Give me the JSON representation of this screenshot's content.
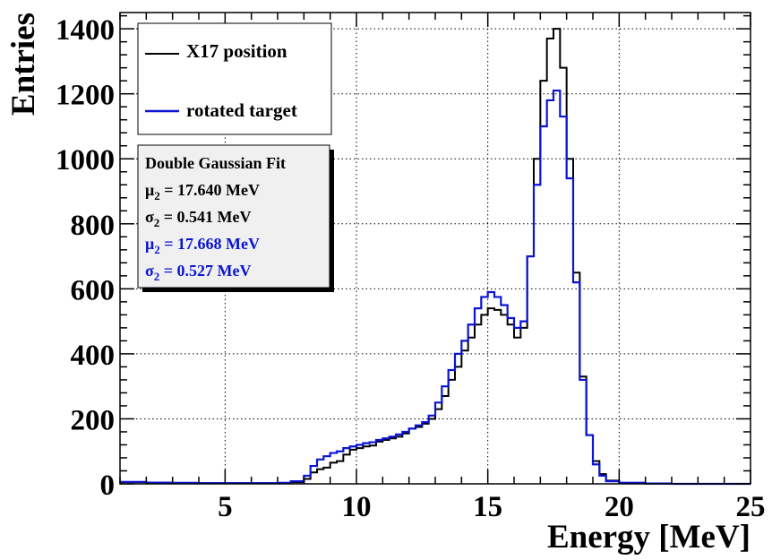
{
  "chart_data": {
    "type": "line",
    "xlabel": "Energy [MeV]",
    "ylabel": "Entries",
    "xlim": [
      1,
      25
    ],
    "ylim": [
      0,
      1450
    ],
    "x_ticks": [
      5,
      10,
      15,
      20,
      25
    ],
    "y_ticks": [
      0,
      200,
      400,
      600,
      800,
      1000,
      1200,
      1400
    ],
    "grid": true,
    "legend": {
      "placement": "top-left",
      "entries": [
        {
          "label": "X17 position",
          "color": "#000000"
        },
        {
          "label": "rotated target",
          "color": "#0a14d2"
        }
      ]
    },
    "fit_box": {
      "title": "Double Gaussian Fit",
      "lines": [
        {
          "symbol": "μ",
          "sub": "2",
          "text": " = 17.640 MeV",
          "color": "#000000"
        },
        {
          "symbol": "σ",
          "sub": "2",
          "text": " = 0.541 MeV",
          "color": "#000000"
        },
        {
          "symbol": "μ",
          "sub": "2",
          "text": " = 17.668 MeV",
          "color": "#0a14d2"
        },
        {
          "symbol": "σ",
          "sub": "2",
          "text": " = 0.527 MeV",
          "color": "#0a14d2"
        }
      ]
    },
    "series": [
      {
        "name": "X17 position",
        "color": "#000000",
        "x": [
          1,
          2,
          3,
          4,
          5,
          6,
          7,
          7.5,
          8,
          8.25,
          8.5,
          8.75,
          9,
          9.25,
          9.5,
          9.75,
          10,
          10.25,
          10.5,
          10.75,
          11,
          11.25,
          11.5,
          11.75,
          12,
          12.25,
          12.5,
          12.75,
          13,
          13.25,
          13.5,
          13.75,
          14,
          14.25,
          14.5,
          14.75,
          15,
          15.25,
          15.5,
          15.75,
          16,
          16.25,
          16.5,
          16.75,
          17,
          17.25,
          17.5,
          17.75,
          18,
          18.25,
          18.5,
          18.75,
          19,
          19.25,
          19.5,
          20,
          21,
          22,
          23,
          24,
          25
        ],
        "y": [
          5,
          3,
          2,
          2,
          2,
          2,
          2,
          5,
          15,
          35,
          45,
          50,
          65,
          70,
          90,
          105,
          110,
          115,
          118,
          130,
          135,
          140,
          145,
          155,
          170,
          175,
          185,
          200,
          230,
          270,
          320,
          360,
          410,
          450,
          490,
          520,
          540,
          535,
          520,
          490,
          450,
          480,
          700,
          1000,
          1240,
          1370,
          1400,
          1280,
          1000,
          650,
          330,
          150,
          70,
          30,
          10,
          3,
          1,
          0,
          0,
          0,
          0
        ]
      },
      {
        "name": "rotated target",
        "color": "#0a14d2",
        "x": [
          1,
          2,
          3,
          4,
          5,
          6,
          7,
          7.5,
          8,
          8.25,
          8.5,
          8.75,
          9,
          9.25,
          9.5,
          9.75,
          10,
          10.25,
          10.5,
          10.75,
          11,
          11.25,
          11.5,
          11.75,
          12,
          12.25,
          12.5,
          12.75,
          13,
          13.25,
          13.5,
          13.75,
          14,
          14.25,
          14.5,
          14.75,
          15,
          15.25,
          15.5,
          15.75,
          16,
          16.25,
          16.5,
          16.75,
          17,
          17.25,
          17.5,
          17.75,
          18,
          18.25,
          18.5,
          18.75,
          19,
          19.25,
          19.5,
          20,
          21,
          22,
          23,
          24,
          25
        ],
        "y": [
          6,
          4,
          3,
          2,
          2,
          2,
          3,
          8,
          25,
          55,
          75,
          85,
          95,
          100,
          110,
          115,
          120,
          125,
          128,
          135,
          140,
          145,
          152,
          160,
          170,
          180,
          190,
          210,
          250,
          300,
          350,
          400,
          440,
          490,
          540,
          575,
          590,
          575,
          550,
          510,
          480,
          500,
          700,
          920,
          1100,
          1180,
          1210,
          1130,
          940,
          620,
          320,
          150,
          60,
          25,
          8,
          3,
          1,
          0,
          0,
          0,
          0
        ]
      }
    ]
  }
}
